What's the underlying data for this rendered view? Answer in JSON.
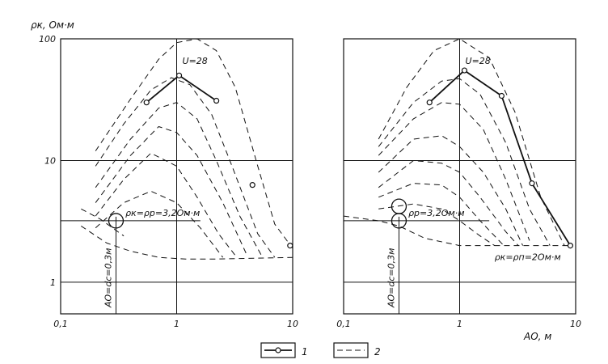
{
  "figure": {
    "y_label": "ρк, Ом·м",
    "x_label": "АО, м"
  },
  "legend": {
    "items": [
      {
        "marker": "line-with-circles",
        "label": "1"
      },
      {
        "marker": "dashed-line",
        "label": "2"
      }
    ]
  },
  "chart_data": [
    {
      "type": "line",
      "x_scale": "log",
      "y_scale": "log",
      "xlim": [
        0.1,
        10
      ],
      "ylim": [
        0.55,
        100
      ],
      "x_ticks": [
        "0,1",
        "1",
        "10"
      ],
      "y_ticks": [
        "1",
        "10",
        "100"
      ],
      "grid": true,
      "annotations": {
        "u_label": "U=28",
        "rho_label": "ρк=ρр=3,2Ом·м",
        "ao_label": "АО=dс=0,3м"
      },
      "reference_lines": {
        "x": [
          0.3
        ],
        "y": [
          3.2
        ]
      },
      "marker_circle": {
        "x": 0.3,
        "y": 3.2
      },
      "series": [
        {
          "style": "solid-markers",
          "x": [
            0.55,
            1.05,
            2.2
          ],
          "y": [
            30,
            50,
            31
          ]
        },
        {
          "style": "dashed",
          "x": [
            0.2,
            0.4,
            0.7,
            1.0,
            1.5,
            2.2,
            3.2,
            5.0,
            7.0,
            10.0
          ],
          "y": [
            12,
            32,
            68,
            93,
            100,
            80,
            40,
            9,
            3.0,
            1.9
          ]
        },
        {
          "style": "dashed",
          "x": [
            0.2,
            0.35,
            0.6,
            0.9,
            1.3,
            2.0,
            3.0,
            5.0,
            7.0
          ],
          "y": [
            9,
            20,
            38,
            48,
            42,
            24,
            9,
            2.5,
            1.6
          ]
        },
        {
          "style": "dashed",
          "x": [
            0.2,
            0.4,
            0.7,
            1.0,
            1.5,
            2.2,
            3.5,
            5.5
          ],
          "y": [
            6,
            15,
            27,
            30,
            22,
            10,
            3.5,
            1.6
          ]
        },
        {
          "style": "dashed",
          "x": [
            0.2,
            0.4,
            0.7,
            1.0,
            1.5,
            2.5,
            4.0
          ],
          "y": [
            4.5,
            11,
            19,
            17,
            11,
            4.5,
            1.7
          ]
        },
        {
          "style": "dashed",
          "x": [
            0.2,
            0.35,
            0.6,
            1.0,
            1.5,
            2.3,
            3.3
          ],
          "y": [
            3.5,
            7,
            11.5,
            9,
            5,
            2.5,
            1.6
          ]
        },
        {
          "style": "dashed",
          "x": [
            0.2,
            0.35,
            0.6,
            1.0,
            1.6,
            2.5
          ],
          "y": [
            2.8,
            4.5,
            5.6,
            4.5,
            2.8,
            1.6
          ]
        },
        {
          "style": "dashed",
          "x": [
            0.15,
            0.25,
            0.4,
            0.7,
            1.2,
            2.0,
            10.0
          ],
          "y": [
            2.9,
            2.1,
            1.8,
            1.6,
            1.55,
            1.55,
            1.6
          ]
        },
        {
          "style": "dashed",
          "x": [
            0.15,
            0.22,
            0.35
          ],
          "y": [
            4.0,
            3.3,
            2.4
          ]
        }
      ],
      "outlier_points": [
        {
          "x": 4.5,
          "y": 6.3
        },
        {
          "x": 9.5,
          "y": 2.0
        }
      ]
    },
    {
      "type": "line",
      "x_scale": "log",
      "y_scale": "log",
      "xlim": [
        0.1,
        10
      ],
      "ylim": [
        0.55,
        100
      ],
      "x_ticks": [
        "0,1",
        "1",
        "10"
      ],
      "y_ticks": [],
      "grid": true,
      "annotations": {
        "u_label": "U=28",
        "rho_label": "ρр=3,2Ом·м",
        "rho_bottom_label": "ρк=ρп=2Ом·м",
        "ao_label": "АО=dс=0,3м"
      },
      "reference_lines": {
        "x": [
          0.3
        ],
        "y": [
          3.2
        ]
      },
      "marker_circles": [
        {
          "x": 0.3,
          "y": 3.2
        },
        {
          "x": 0.3,
          "y": 4.2
        }
      ],
      "series": [
        {
          "style": "solid-markers",
          "x": [
            0.55,
            1.1,
            2.3,
            4.2,
            9.0
          ],
          "y": [
            30,
            55,
            34,
            6.5,
            2.0
          ]
        },
        {
          "style": "dashed",
          "x": [
            0.2,
            0.35,
            0.6,
            1.0,
            1.8,
            3.0,
            5.0,
            8.0
          ],
          "y": [
            15,
            40,
            80,
            100,
            70,
            25,
            5,
            2.0
          ]
        },
        {
          "style": "dashed",
          "x": [
            0.2,
            0.4,
            0.7,
            1.0,
            1.5,
            2.5,
            4.0,
            6.0
          ],
          "y": [
            13,
            30,
            45,
            47,
            35,
            14,
            4,
            2.0
          ]
        },
        {
          "style": "dashed",
          "x": [
            0.2,
            0.4,
            0.7,
            1.0,
            1.6,
            2.5,
            4.0
          ],
          "y": [
            11,
            22,
            30,
            29,
            18,
            7,
            2.2
          ]
        },
        {
          "style": "dashed",
          "x": [
            0.2,
            0.4,
            0.7,
            1.0,
            1.6,
            2.5,
            3.5
          ],
          "y": [
            8,
            15,
            16,
            13,
            8,
            4,
            2.0
          ]
        },
        {
          "style": "dashed",
          "x": [
            0.2,
            0.4,
            0.7,
            1.0,
            1.5,
            2.5,
            3.2
          ],
          "y": [
            6,
            10,
            9.5,
            8,
            5,
            2.6,
            2.0
          ]
        },
        {
          "style": "dashed",
          "x": [
            0.2,
            0.4,
            0.7,
            1.0,
            1.5,
            2.4
          ],
          "y": [
            5,
            6.5,
            6.3,
            5,
            3.2,
            2.0
          ]
        },
        {
          "style": "dashed",
          "x": [
            0.2,
            0.4,
            0.7,
            1.0,
            1.5,
            2.0
          ],
          "y": [
            4,
            4.4,
            4.0,
            3.2,
            2.4,
            2.0
          ]
        },
        {
          "style": "dashed",
          "x": [
            0.1,
            0.2,
            0.3,
            0.5,
            1.0,
            2.0,
            9.0
          ],
          "y": [
            3.5,
            3.2,
            2.9,
            2.3,
            2.0,
            2.0,
            2.0
          ]
        }
      ]
    }
  ]
}
